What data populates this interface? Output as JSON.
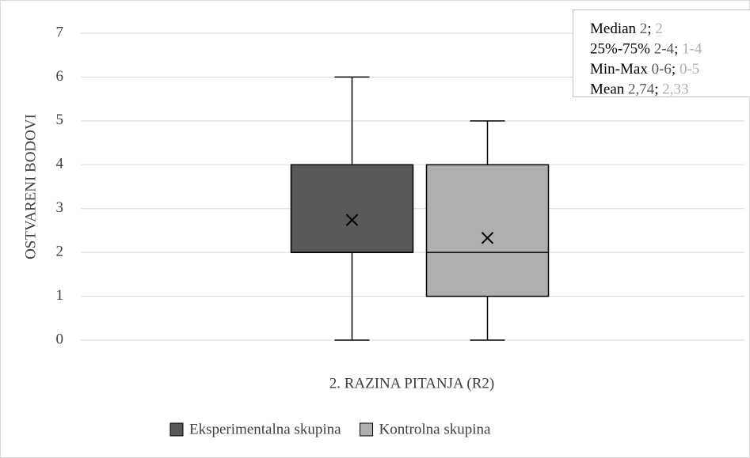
{
  "chart_data": {
    "type": "box",
    "ylabel": "OSTVARENI BODOVI",
    "xlabel": "2. RAZINA PITANJA (R2)",
    "ylim": [
      0,
      7
    ],
    "yticks": [
      0,
      1,
      2,
      3,
      4,
      5,
      6,
      7
    ],
    "grid": true,
    "legend": "bottom",
    "series": [
      {
        "name": "Eksperimentalna skupina",
        "color": "#595959",
        "min": 0,
        "q1": 2,
        "median": 2,
        "q3": 4,
        "max": 6,
        "mean": 2.74
      },
      {
        "name": "Kontrolna skupina",
        "color": "#afafaf",
        "min": 0,
        "q1": 1,
        "median": 2,
        "q3": 4,
        "max": 5,
        "mean": 2.33
      }
    ],
    "annotation": {
      "separator": ";",
      "lines": [
        {
          "label": "Median",
          "values": [
            "2",
            "2"
          ]
        },
        {
          "label": "25%-75%",
          "values": [
            "2-4",
            "1-4"
          ]
        },
        {
          "label": "Min-Max",
          "values": [
            "0-6",
            "0-5"
          ]
        },
        {
          "label": "Mean",
          "values": [
            "2,74",
            "2,33"
          ]
        }
      ]
    }
  }
}
